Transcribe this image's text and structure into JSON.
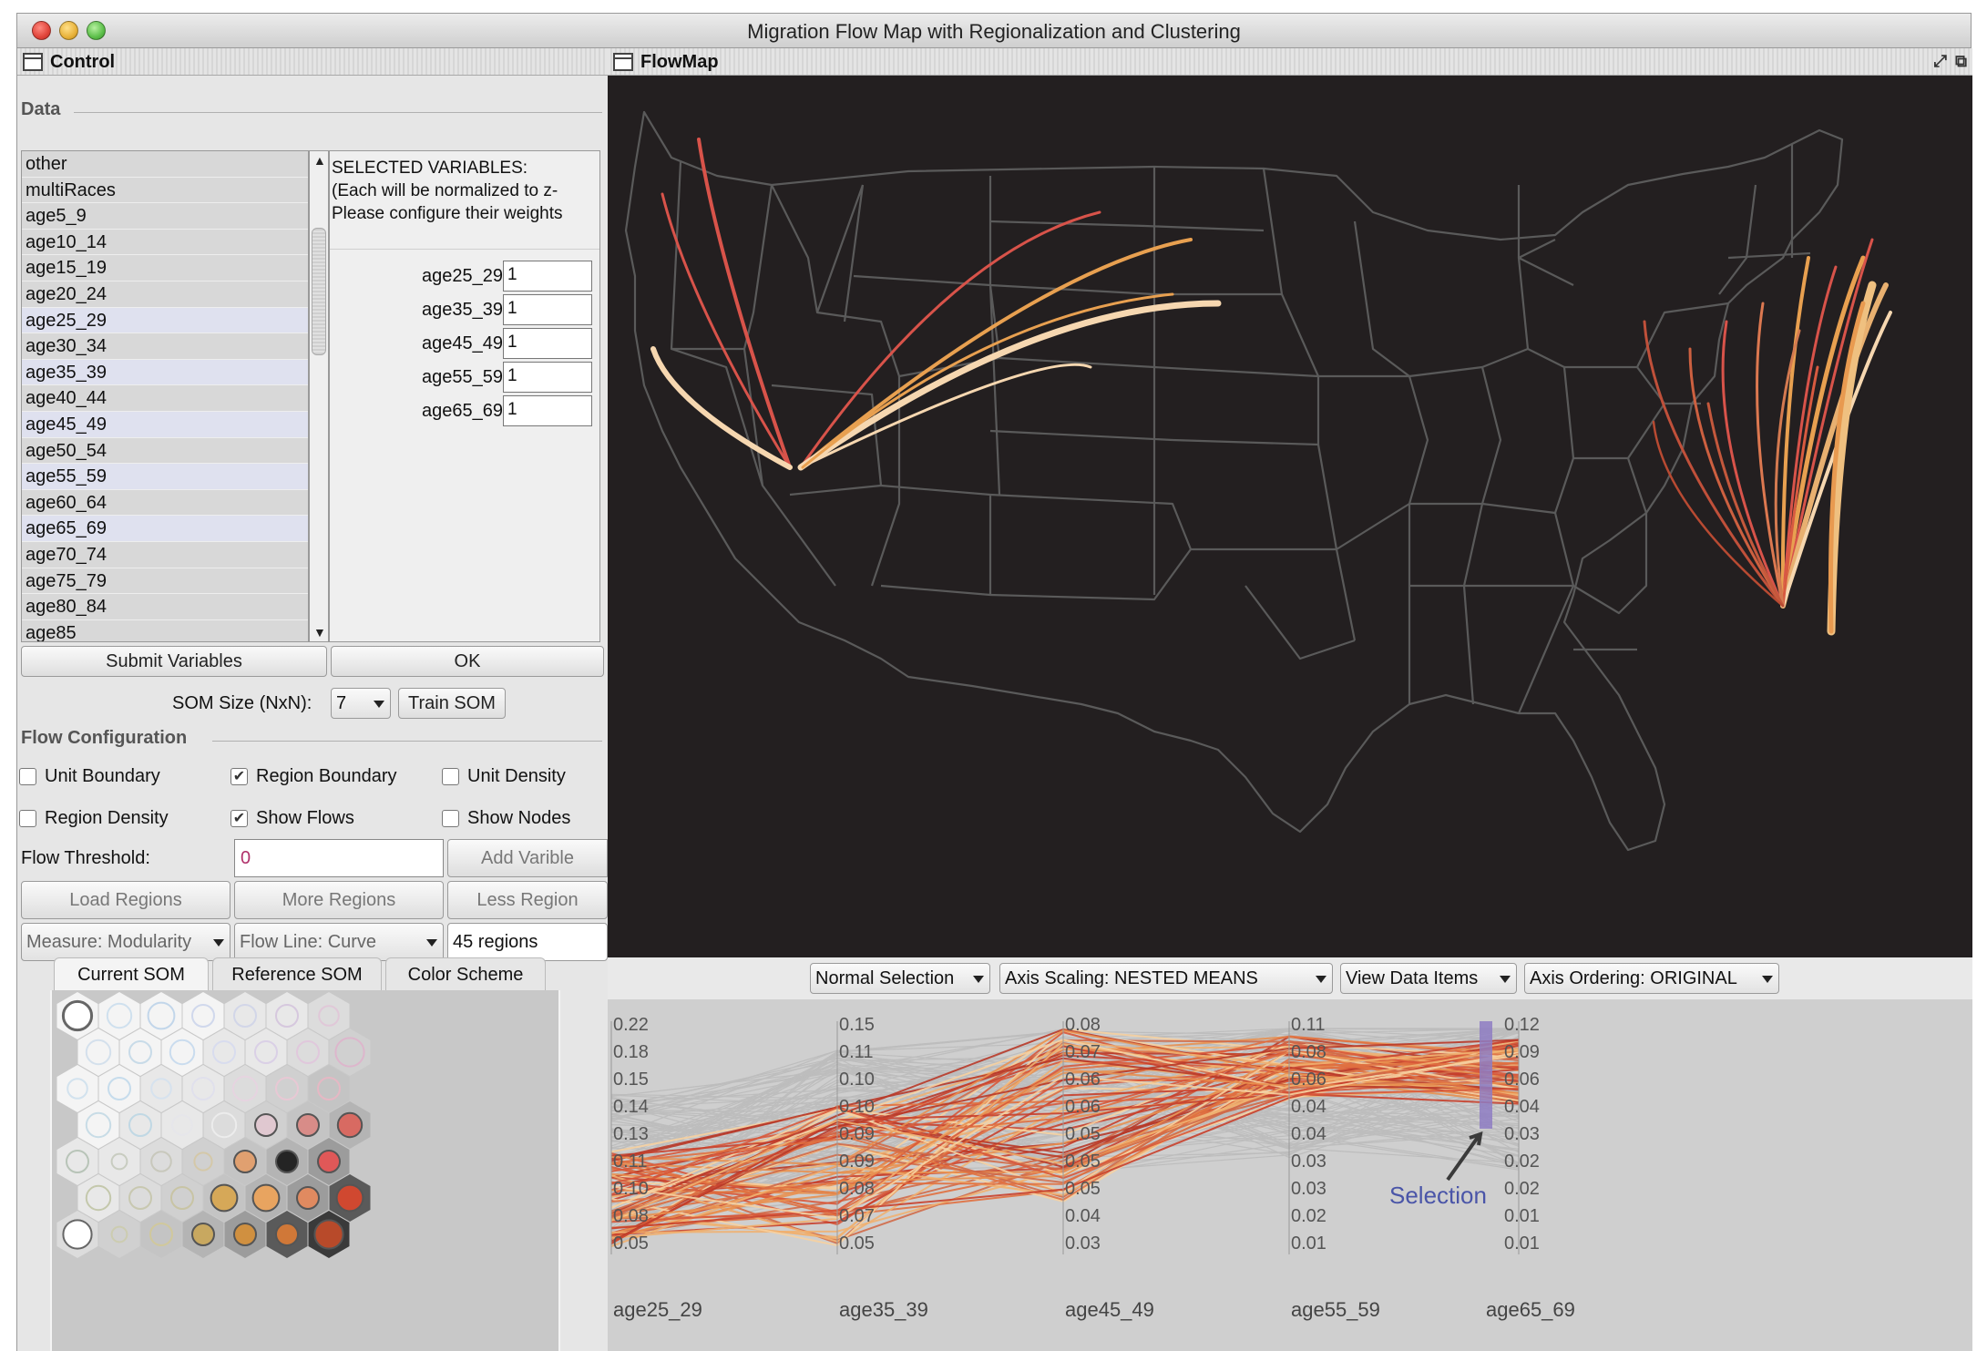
{
  "window": {
    "title": "Migration Flow Map with Regionalization and Clustering"
  },
  "control": {
    "title": "Control",
    "data_label": "Data",
    "variables": [
      {
        "name": "other",
        "selected": false
      },
      {
        "name": "multiRaces",
        "selected": false
      },
      {
        "name": "age5_9",
        "selected": false
      },
      {
        "name": "age10_14",
        "selected": false
      },
      {
        "name": "age15_19",
        "selected": false
      },
      {
        "name": "age20_24",
        "selected": false
      },
      {
        "name": "age25_29",
        "selected": true
      },
      {
        "name": "age30_34",
        "selected": false
      },
      {
        "name": "age35_39",
        "selected": true
      },
      {
        "name": "age40_44",
        "selected": false
      },
      {
        "name": "age45_49",
        "selected": true
      },
      {
        "name": "age50_54",
        "selected": false
      },
      {
        "name": "age55_59",
        "selected": true
      },
      {
        "name": "age60_64",
        "selected": false
      },
      {
        "name": "age65_69",
        "selected": true
      },
      {
        "name": "age70_74",
        "selected": false
      },
      {
        "name": "age75_79",
        "selected": false
      },
      {
        "name": "age80_84",
        "selected": false
      },
      {
        "name": "age85",
        "selected": false
      }
    ],
    "selected_header": {
      "line1": "SELECTED VARIABLES:",
      "line2": "(Each will be normalized to z-",
      "line3": "Please configure their weights"
    },
    "weights": [
      {
        "name": "age25_29",
        "value": "1"
      },
      {
        "name": "age35_39",
        "value": "1"
      },
      {
        "name": "age45_49",
        "value": "1"
      },
      {
        "name": "age55_59",
        "value": "1"
      },
      {
        "name": "age65_69",
        "value": "1"
      }
    ],
    "submit_label": "Submit Variables",
    "ok_label": "OK",
    "som_size_label": "SOM Size (NxN):",
    "som_size_value": "7",
    "train_label": "Train SOM",
    "flow_config_label": "Flow Configuration",
    "checkboxes": {
      "unit_boundary": {
        "label": "Unit Boundary",
        "checked": false
      },
      "region_boundary": {
        "label": "Region Boundary",
        "checked": true
      },
      "unit_density": {
        "label": "Unit Density",
        "checked": false
      },
      "region_density": {
        "label": "Region Density",
        "checked": false
      },
      "show_flows": {
        "label": "Show Flows",
        "checked": true
      },
      "show_nodes": {
        "label": "Show Nodes",
        "checked": false
      }
    },
    "flow_threshold_label": "Flow Threshold:",
    "flow_threshold_value": "0",
    "add_variable_label": "Add Varible",
    "load_regions_label": "Load Regions",
    "more_regions_label": "More Regions",
    "less_regions_label": "Less Region",
    "measure_label": "Measure: Modularity",
    "flow_line_label": "Flow Line: Curve",
    "regions_label": "45 regions"
  },
  "som_tabs": [
    "Current SOM",
    "Reference SOM",
    "Color Scheme"
  ],
  "flowmap": {
    "title": "FlowMap"
  },
  "pcp": {
    "toolbar": {
      "selection": "Normal Selection",
      "scaling": "Axis Scaling: NESTED MEANS",
      "view": "View Data Items",
      "ordering": "Axis Ordering: ORIGINAL"
    },
    "axes": [
      {
        "name": "age25_29",
        "ticks": [
          "0.22",
          "0.18",
          "0.15",
          "0.14",
          "0.13",
          "0.11",
          "0.10",
          "0.08",
          "0.05"
        ]
      },
      {
        "name": "age35_39",
        "ticks": [
          "0.15",
          "0.11",
          "0.10",
          "0.10",
          "0.09",
          "0.09",
          "0.08",
          "0.07",
          "0.05"
        ]
      },
      {
        "name": "age45_49",
        "ticks": [
          "0.08",
          "0.07",
          "0.06",
          "0.06",
          "0.05",
          "0.05",
          "0.05",
          "0.04",
          "0.03"
        ]
      },
      {
        "name": "age55_59",
        "ticks": [
          "0.11",
          "0.08",
          "0.06",
          "0.04",
          "0.04",
          "0.03",
          "0.03",
          "0.02",
          "0.01"
        ]
      },
      {
        "name": "age65_69",
        "ticks": [
          "0.12",
          "0.09",
          "0.06",
          "0.04",
          "0.03",
          "0.02",
          "0.02",
          "0.01",
          "0.01"
        ]
      }
    ],
    "selection_annotation": "Selection"
  },
  "colors": {
    "map_bg": "#231f20",
    "state_border": "#5a5a5a",
    "flow_red": "#d8534a",
    "flow_orange": "#e8a050",
    "flow_pale": "#f6d7b0",
    "selection": "#8e7cc3",
    "annotation_text": "#4a55a8"
  }
}
